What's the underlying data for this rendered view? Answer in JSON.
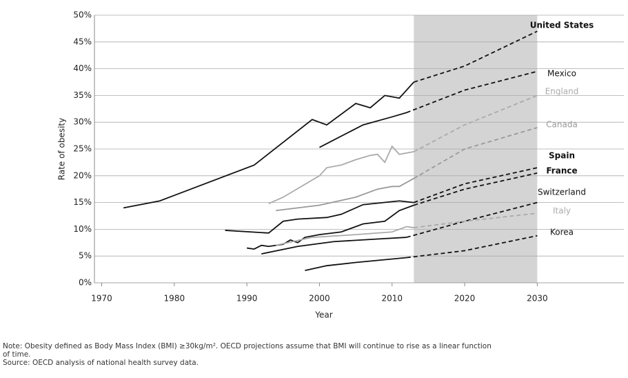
{
  "chart_data": {
    "type": "line",
    "xlabel": "Year",
    "ylabel": "Rate of obesity",
    "xlim": [
      1969,
      2035
    ],
    "xticks": [
      1970,
      1980,
      1990,
      2000,
      2010,
      2020,
      2030
    ],
    "ylim": [
      0,
      50
    ],
    "yticks": [
      {
        "value": 0,
        "label": "0%"
      },
      {
        "value": 5,
        "label": "5%"
      },
      {
        "value": 10,
        "label": "10%"
      },
      {
        "value": 15,
        "label": "15%"
      },
      {
        "value": 20,
        "label": "20%"
      },
      {
        "value": 25,
        "label": "25%"
      },
      {
        "value": 30,
        "label": "30%"
      },
      {
        "value": 35,
        "label": "35%"
      },
      {
        "value": 40,
        "label": "40%"
      },
      {
        "value": 45,
        "label": "45%"
      },
      {
        "value": 50,
        "label": "50%"
      }
    ],
    "grid": true,
    "shaded_range": [
      2013,
      2030
    ],
    "series": [
      {
        "name": "United States",
        "color": "#111111",
        "x": [
          1973,
          1978,
          1991,
          1999,
          2001,
          2005,
          2007,
          2009,
          2011,
          2013
        ],
        "values": [
          14,
          15.3,
          22,
          30.5,
          29.5,
          33.5,
          32.7,
          35,
          34.5,
          37.5
        ],
        "projection_x": [
          2013,
          2020,
          2030
        ],
        "projection_values": [
          37.5,
          40.5,
          47
        ]
      },
      {
        "name": "Mexico",
        "color": "#111111",
        "x": [
          2000,
          2006,
          2010,
          2012
        ],
        "values": [
          25.3,
          29.5,
          31,
          31.8
        ],
        "projection_x": [
          2012,
          2020,
          2030
        ],
        "projection_values": [
          31.8,
          36,
          39.5
        ]
      },
      {
        "name": "England",
        "color": "#aaaaaa",
        "x": [
          1993,
          1995,
          2000,
          2001,
          2003,
          2005,
          2007,
          2008,
          2009,
          2010,
          2011,
          2013
        ],
        "values": [
          14.8,
          16,
          20,
          21.5,
          22,
          23,
          23.8,
          24,
          22.5,
          25.5,
          24,
          24.5
        ],
        "projection_x": [
          2013,
          2020,
          2030
        ],
        "projection_values": [
          24.5,
          29.5,
          35
        ]
      },
      {
        "name": "Canada",
        "color": "#999999",
        "x": [
          1994,
          2000,
          2005,
          2008,
          2010,
          2011,
          2013
        ],
        "values": [
          13.5,
          14.5,
          16,
          17.5,
          18,
          18,
          19.5
        ],
        "projection_x": [
          2013,
          2020,
          2030
        ],
        "projection_values": [
          19.5,
          25,
          29
        ]
      },
      {
        "name": "Spain",
        "color": "#111111",
        "x": [
          1987,
          1993,
          1995,
          1997,
          2001,
          2003,
          2006,
          2011,
          2013
        ],
        "values": [
          9.8,
          9.3,
          11.5,
          11.9,
          12.2,
          12.8,
          14.6,
          15.3,
          15
        ],
        "projection_x": [
          2013,
          2020,
          2030
        ],
        "projection_values": [
          15,
          18.5,
          21.5
        ]
      },
      {
        "name": "France",
        "color": "#111111",
        "x": [
          1990,
          1991,
          1992,
          1993,
          1995,
          1996,
          1997,
          1998,
          2000,
          2003,
          2006,
          2009,
          2011,
          2013
        ],
        "values": [
          6.5,
          6.3,
          7,
          6.8,
          7.2,
          8,
          7.5,
          8.5,
          9,
          9.5,
          11,
          11.5,
          13.5,
          14.5
        ],
        "projection_x": [
          2013,
          2020,
          2030
        ],
        "projection_values": [
          14.5,
          17.5,
          20.5
        ]
      },
      {
        "name": "Switzerland",
        "color": "#111111",
        "x": [
          1992,
          1997,
          2002,
          2007,
          2012
        ],
        "values": [
          5.4,
          6.8,
          7.7,
          8.1,
          8.5
        ],
        "projection_x": [
          2012,
          2020,
          2030
        ],
        "projection_values": [
          8.5,
          11.5,
          15
        ]
      },
      {
        "name": "Italy",
        "color": "#aaaaaa",
        "x": [
          1994,
          1999,
          2005,
          2010,
          2012,
          2013
        ],
        "values": [
          7,
          8.5,
          9,
          9.5,
          10.5,
          10.3
        ],
        "projection_x": [
          2013,
          2020,
          2030
        ],
        "projection_values": [
          10.3,
          11.5,
          13
        ]
      },
      {
        "name": "Korea",
        "color": "#111111",
        "x": [
          1998,
          2001,
          2005,
          2012
        ],
        "values": [
          2.3,
          3.2,
          3.8,
          4.7
        ],
        "projection_x": [
          2012,
          2020,
          2030
        ],
        "projection_values": [
          4.7,
          6,
          8.8
        ]
      }
    ],
    "notes": [
      "Note: Obesity defined as Body Mass Index (BMI) ≥30kg/m². OECD projections assume that BMI will continue to rise as a linear function",
      "of time.",
      "Source: OECD analysis of national health survey data."
    ]
  }
}
